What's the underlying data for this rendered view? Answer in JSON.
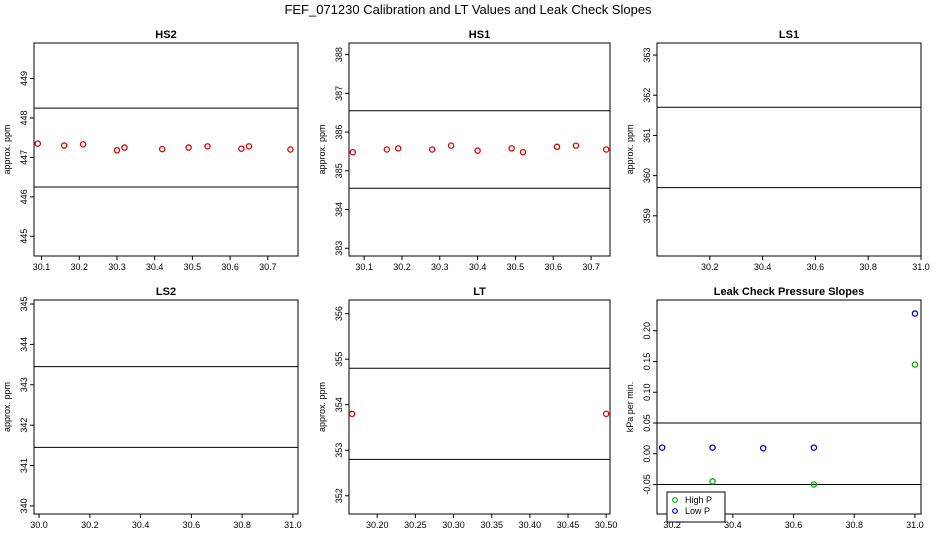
{
  "page_title": "FEF_071230  Calibration and LT Values and Leak Check Slopes",
  "chart_data": [
    {
      "type": "scatter",
      "title": "HS2",
      "ylabel": "approx. ppm",
      "xlim": [
        30.08,
        30.78
      ],
      "ylim": [
        444.5,
        449.9
      ],
      "xticks": [
        "30.1",
        "30.2",
        "30.3",
        "30.4",
        "30.5",
        "30.6",
        "30.7"
      ],
      "yticks": [
        "445",
        "446",
        "447",
        "448",
        "449"
      ],
      "hlines": [
        446.25,
        448.25
      ],
      "series": [
        {
          "color": "#dd0000",
          "marker": "circle",
          "x": [
            30.09,
            30.16,
            30.21,
            30.3,
            30.32,
            30.42,
            30.49,
            30.54,
            30.63,
            30.65,
            30.76
          ],
          "y": [
            447.35,
            447.3,
            447.33,
            447.18,
            447.25,
            447.21,
            447.25,
            447.28,
            447.22,
            447.28,
            447.2
          ]
        }
      ]
    },
    {
      "type": "scatter",
      "title": "HS1",
      "ylabel": "approx. ppm",
      "xlim": [
        30.06,
        30.75
      ],
      "ylim": [
        382.8,
        388.3
      ],
      "xticks": [
        "30.1",
        "30.2",
        "30.3",
        "30.4",
        "30.5",
        "30.6",
        "30.7"
      ],
      "yticks": [
        "383",
        "384",
        "385",
        "386",
        "387",
        "388"
      ],
      "hlines": [
        384.55,
        386.55
      ],
      "series": [
        {
          "color": "#dd0000",
          "marker": "circle",
          "x": [
            30.07,
            30.16,
            30.19,
            30.28,
            30.33,
            30.4,
            30.49,
            30.52,
            30.61,
            30.66,
            30.74
          ],
          "y": [
            385.48,
            385.55,
            385.58,
            385.55,
            385.65,
            385.52,
            385.58,
            385.48,
            385.62,
            385.65,
            385.55
          ]
        }
      ]
    },
    {
      "type": "scatter",
      "title": "LS1",
      "ylabel": "approx. ppm",
      "xlim": [
        30.0,
        31.0
      ],
      "ylim": [
        358.0,
        363.3
      ],
      "xticks": [
        "30.2",
        "30.4",
        "30.6",
        "30.8",
        "31.0"
      ],
      "yticks": [
        "359",
        "360",
        "361",
        "362",
        "363"
      ],
      "hlines": [
        359.7,
        361.7
      ],
      "series": []
    },
    {
      "type": "scatter",
      "title": "LS2",
      "ylabel": "approx. ppm",
      "xlim": [
        29.98,
        31.02
      ],
      "ylim": [
        339.8,
        345.1
      ],
      "xticks": [
        "30.0",
        "30.2",
        "30.4",
        "30.6",
        "30.8",
        "31.0"
      ],
      "yticks": [
        "340",
        "341",
        "342",
        "343",
        "344",
        "345"
      ],
      "hlines": [
        341.45,
        343.45
      ],
      "series": []
    },
    {
      "type": "scatter",
      "title": "LT",
      "ylabel": "approx. ppm",
      "xlim": [
        30.163,
        30.505
      ],
      "ylim": [
        351.6,
        356.3
      ],
      "xticks": [
        "30.20",
        "30.25",
        "30.30",
        "30.35",
        "30.40",
        "30.45",
        "30.50"
      ],
      "yticks": [
        "352",
        "353",
        "354",
        "355",
        "356"
      ],
      "hlines": [
        352.8,
        354.8
      ],
      "series": [
        {
          "color": "#dd0000",
          "marker": "circle",
          "x": [
            30.167,
            30.5
          ],
          "y": [
            353.8,
            353.8
          ]
        }
      ]
    },
    {
      "type": "scatter",
      "title": "Leak Check Pressure Slopes",
      "ylabel": "kPa per min.",
      "xlim": [
        30.15,
        31.02
      ],
      "ylim": [
        -0.098,
        0.25
      ],
      "xticks": [
        "30.2",
        "30.4",
        "30.6",
        "30.8",
        "31.0"
      ],
      "yticks": [
        "-0.05",
        "0.00",
        "0.05",
        "0.10",
        "0.15",
        "0.20"
      ],
      "hlines": [
        -0.05,
        0.05
      ],
      "legend": {
        "placement": "bottom-left",
        "entries": [
          {
            "label": "High P",
            "color": "#00aa00"
          },
          {
            "label": "Low P",
            "color": "#0000cc"
          }
        ]
      },
      "series": [
        {
          "name": "High P",
          "color": "#00aa00",
          "marker": "circle",
          "x": [
            30.333,
            30.667,
            31.0
          ],
          "y": [
            -0.045,
            -0.05,
            0.145
          ]
        },
        {
          "name": "Low P",
          "color": "#0000cc",
          "marker": "circle",
          "x": [
            30.167,
            30.333,
            30.5,
            30.667,
            31.0
          ],
          "y": [
            0.01,
            0.01,
            0.009,
            0.01,
            0.228
          ]
        }
      ]
    }
  ]
}
